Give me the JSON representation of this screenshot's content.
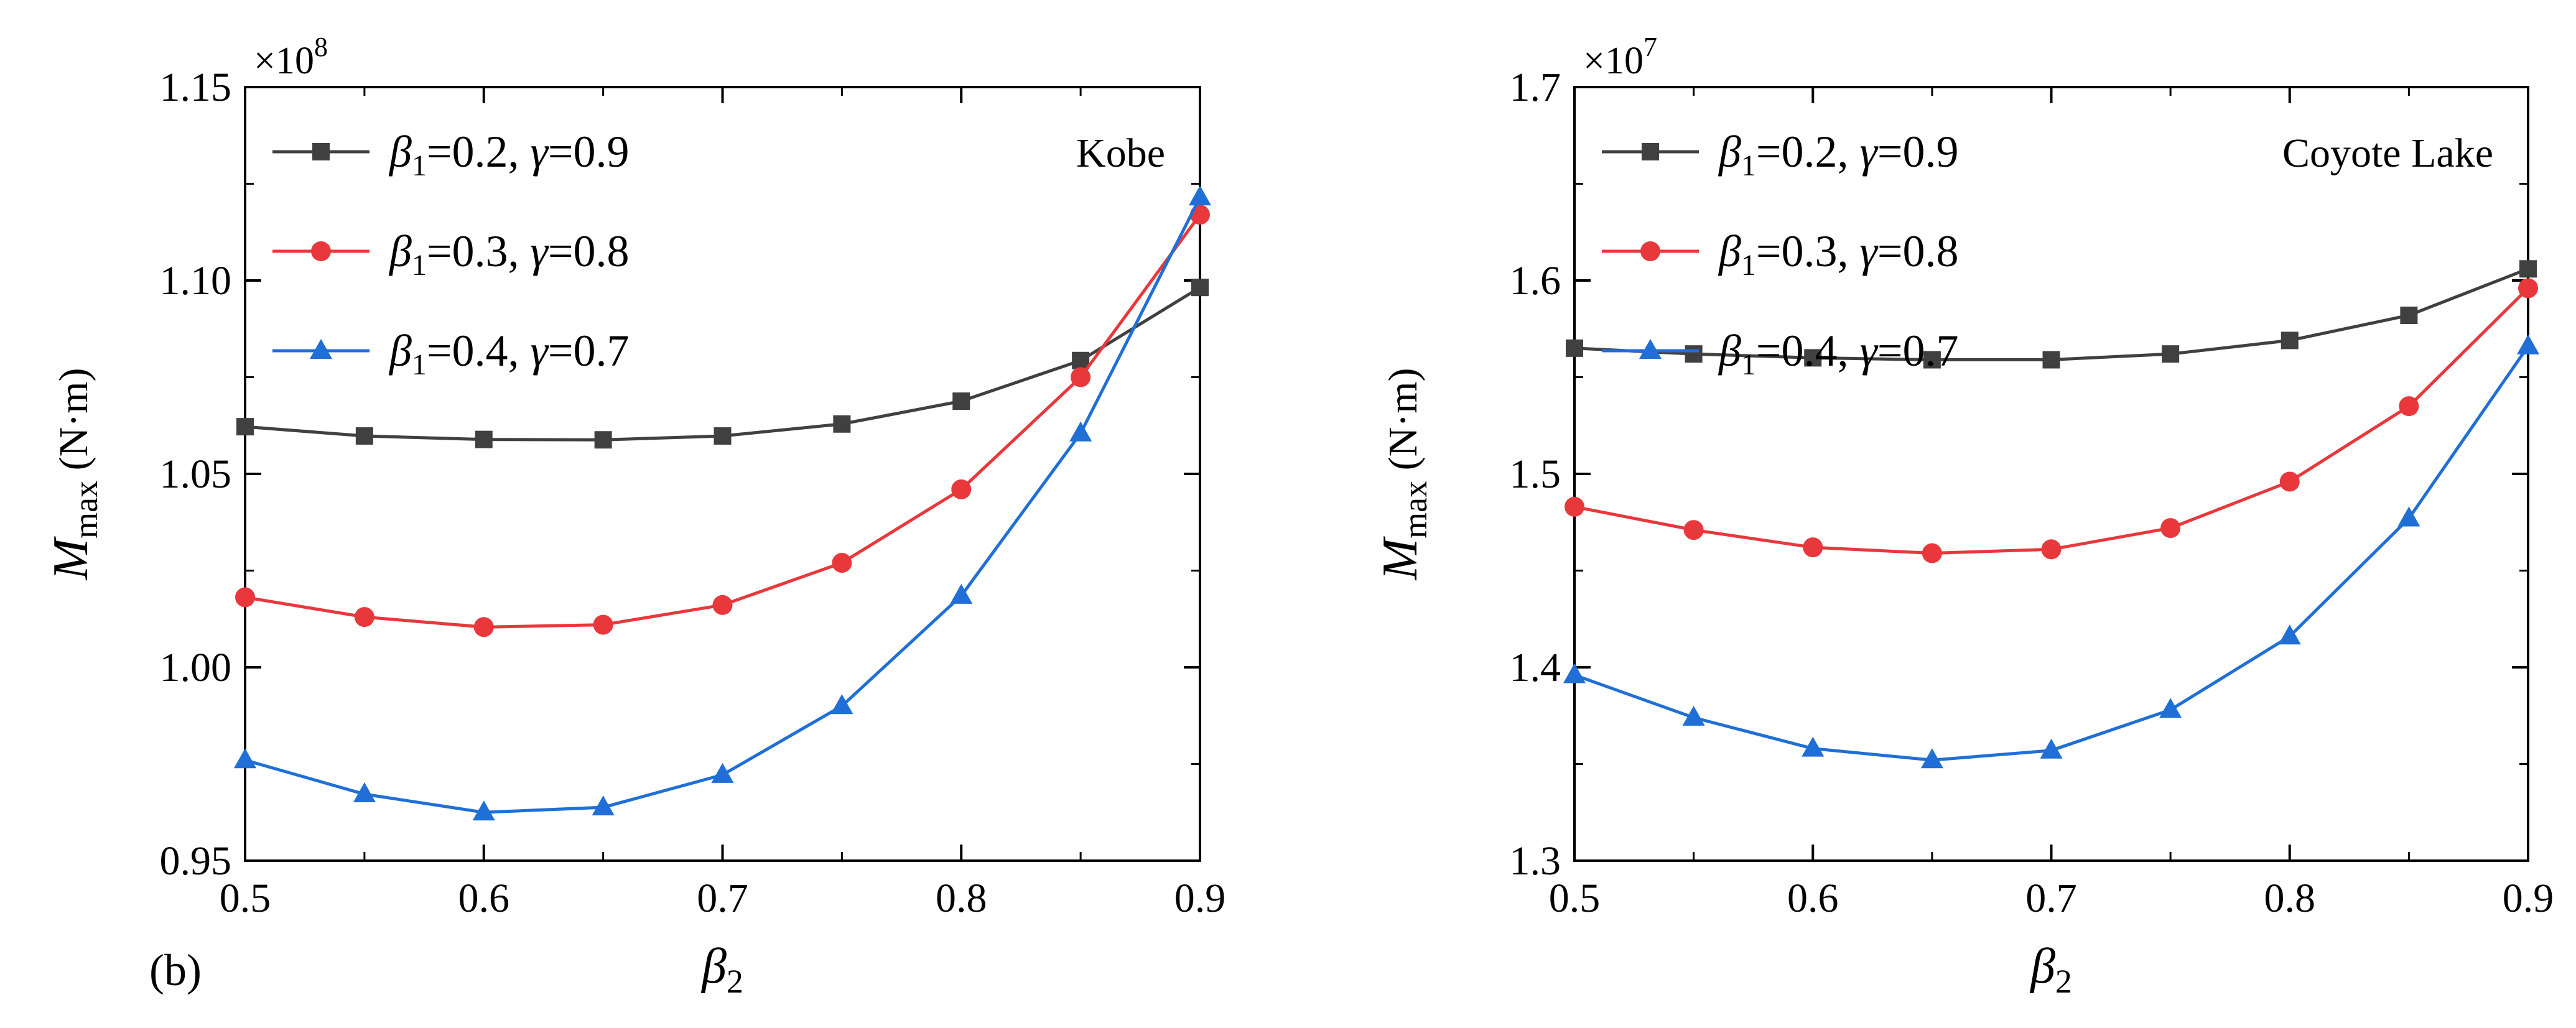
{
  "chart_data": [
    {
      "type": "line",
      "panel_label": "(b)",
      "annotation": "Kobe",
      "xlabel": {
        "symbol": "β",
        "sub": "2"
      },
      "ylabel": {
        "symbol": "M",
        "sub": "max",
        "unit": "(N·m)"
      },
      "multiplier": {
        "base": "×10",
        "exp": "8"
      },
      "xlim": [
        0.5,
        0.9
      ],
      "ylim": [
        0.95,
        1.15
      ],
      "xticks": [
        "0.5",
        "0.6",
        "0.7",
        "0.8",
        "0.9"
      ],
      "yticks": [
        "0.95",
        "1.00",
        "1.05",
        "1.10",
        "1.15"
      ],
      "x": [
        0.5,
        0.55,
        0.6,
        0.65,
        0.7,
        0.75,
        0.8,
        0.85,
        0.9
      ],
      "series": [
        {
          "beta1": "0.2",
          "gamma": "0.9",
          "color": "#404040",
          "marker": "square",
          "values": [
            1.0622,
            1.0598,
            1.0589,
            1.0588,
            1.0598,
            1.0629,
            1.0688,
            1.0793,
            1.0982
          ]
        },
        {
          "beta1": "0.3",
          "gamma": "0.8",
          "color": "#e8383c",
          "marker": "circle",
          "values": [
            1.0181,
            1.013,
            1.0104,
            1.011,
            1.0161,
            1.027,
            1.046,
            1.075,
            1.117
          ]
        },
        {
          "beta1": "0.4",
          "gamma": "0.7",
          "color": "#1f6fd6",
          "marker": "triangle",
          "values": [
            0.976,
            0.9672,
            0.9625,
            0.9638,
            0.9722,
            0.99,
            1.0185,
            1.0605,
            1.1215
          ]
        }
      ]
    },
    {
      "type": "line",
      "panel_label": "",
      "annotation": "Coyote Lake",
      "xlabel": {
        "symbol": "β",
        "sub": "2"
      },
      "ylabel": {
        "symbol": "M",
        "sub": "max",
        "unit": "(N·m)"
      },
      "multiplier": {
        "base": "×10",
        "exp": "7"
      },
      "xlim": [
        0.5,
        0.9
      ],
      "ylim": [
        1.3,
        1.7
      ],
      "xticks": [
        "0.5",
        "0.6",
        "0.7",
        "0.8",
        "0.9"
      ],
      "yticks": [
        "1.3",
        "1.4",
        "1.5",
        "1.6",
        "1.7"
      ],
      "x": [
        0.5,
        0.55,
        0.6,
        0.65,
        0.7,
        0.75,
        0.8,
        0.85,
        0.9
      ],
      "series": [
        {
          "beta1": "0.2",
          "gamma": "0.9",
          "color": "#404040",
          "marker": "square",
          "values": [
            1.565,
            1.562,
            1.56,
            1.559,
            1.559,
            1.562,
            1.569,
            1.582,
            1.606
          ]
        },
        {
          "beta1": "0.3",
          "gamma": "0.8",
          "color": "#e8383c",
          "marker": "circle",
          "values": [
            1.483,
            1.471,
            1.462,
            1.459,
            1.461,
            1.472,
            1.496,
            1.535,
            1.596
          ]
        },
        {
          "beta1": "0.4",
          "gamma": "0.7",
          "color": "#1f6fd6",
          "marker": "triangle",
          "values": [
            1.396,
            1.374,
            1.358,
            1.352,
            1.357,
            1.378,
            1.416,
            1.477,
            1.566
          ]
        }
      ]
    }
  ]
}
